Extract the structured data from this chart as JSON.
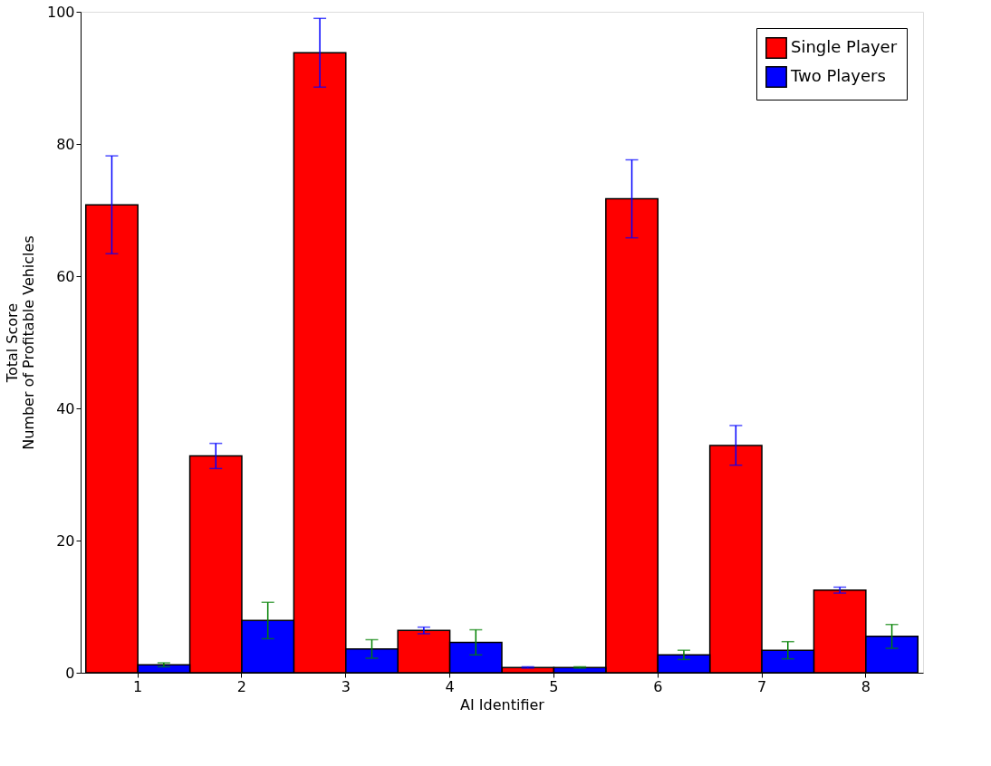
{
  "chart_data": {
    "type": "bar",
    "xlabel": "AI Identifier",
    "ylabel": "Total Score\nNumber of Profitable Vehicles",
    "categories": [
      "1",
      "2",
      "3",
      "4",
      "5",
      "6",
      "7",
      "8"
    ],
    "series": [
      {
        "name": "Single Player",
        "color": "#ff0000",
        "values": [
          70.8,
          32.8,
          93.8,
          6.4,
          0.8,
          71.7,
          34.4,
          12.5
        ],
        "errors": [
          7.4,
          1.9,
          5.2,
          0.5,
          0.1,
          5.9,
          3.0,
          0.45
        ]
      },
      {
        "name": "Two Players",
        "color": "#0000ff",
        "values": [
          1.2,
          7.9,
          3.6,
          4.6,
          0.8,
          2.7,
          3.4,
          5.5
        ],
        "errors": [
          0.3,
          2.75,
          1.4,
          1.9,
          0.1,
          0.7,
          1.3,
          1.8
        ]
      }
    ],
    "ylim": [
      0,
      100
    ],
    "yticks": [
      0,
      20,
      40,
      60,
      80,
      100
    ],
    "legend": "top right"
  }
}
